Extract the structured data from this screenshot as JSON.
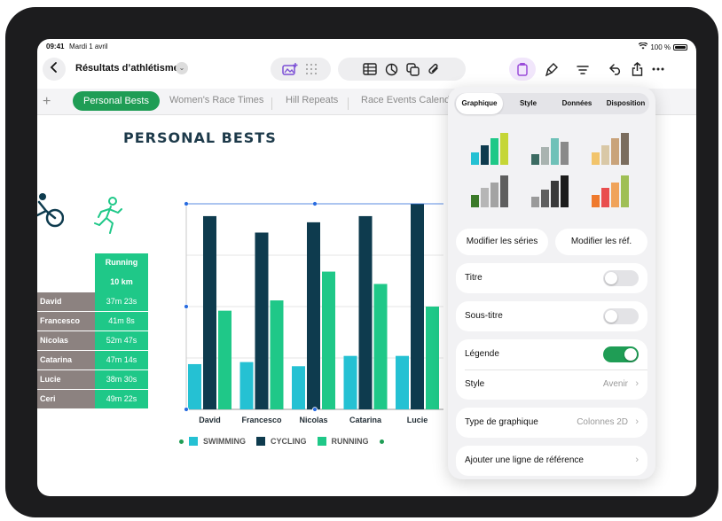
{
  "status": {
    "time": "09:41",
    "date": "Mardi 1 avril",
    "battery": "100 %"
  },
  "toolbar": {
    "doc_title": "Résultats d’athlétisme",
    "icons": [
      "back-icon",
      "media-icon",
      "grid-icon",
      "table-icon",
      "chart-icon",
      "shape-icon",
      "attach-icon",
      "format-icon",
      "brush-icon",
      "organize-icon",
      "undo-icon",
      "share-icon",
      "more-icon"
    ]
  },
  "tabs": [
    "Personal Bests",
    "Women's Race Times",
    "Hill Repeats",
    "Race Events Calenda"
  ],
  "sheet": {
    "title": "PERSONAL BESTS"
  },
  "table": {
    "header": [
      "Running",
      "10 km"
    ],
    "rows": [
      {
        "name": "David",
        "value": "37m 23s"
      },
      {
        "name": "Francesco",
        "value": "41m 8s"
      },
      {
        "name": "Nicolas",
        "value": "52m 47s"
      },
      {
        "name": "Catarina",
        "value": "47m 14s"
      },
      {
        "name": "Lucie",
        "value": "38m 30s"
      },
      {
        "name": "Ceri",
        "value": "49m 22s"
      }
    ]
  },
  "chart_data": {
    "type": "bar",
    "categories": [
      "David",
      "Francesco",
      "Nicolas",
      "Catarina",
      "Lucie"
    ],
    "series": [
      {
        "name": "SWIMMING",
        "color": "#25c1d3",
        "values": [
          22,
          23,
          21,
          26,
          26
        ]
      },
      {
        "name": "CYCLING",
        "color": "#0e3b4e",
        "values": [
          94,
          86,
          91,
          94,
          100
        ]
      },
      {
        "name": "RUNNING",
        "color": "#1fc888",
        "values": [
          48,
          53,
          67,
          61,
          50
        ]
      }
    ],
    "ylim": [
      0,
      100
    ],
    "grid": true,
    "legend": "bottom"
  },
  "panel": {
    "tabs": [
      "Graphique",
      "Style",
      "Données",
      "Disposition"
    ],
    "active_tab": "Graphique",
    "buttons": [
      "Modifier les séries",
      "Modifier les réf."
    ],
    "titre": "Titre",
    "titre_on": false,
    "sous_titre": "Sous-titre",
    "sous_titre_on": false,
    "legende": "Légende",
    "legende_on": true,
    "style_label": "Style",
    "style_value": "Avenir",
    "chart_type_label": "Type de graphique",
    "chart_type_value": "Colonnes 2D",
    "reference_line": "Ajouter une ligne de référence"
  },
  "colors": {
    "accent": "#1f9d55",
    "swimming": "#25c1d3",
    "cycling": "#0e3b4e",
    "running": "#1fc888"
  }
}
